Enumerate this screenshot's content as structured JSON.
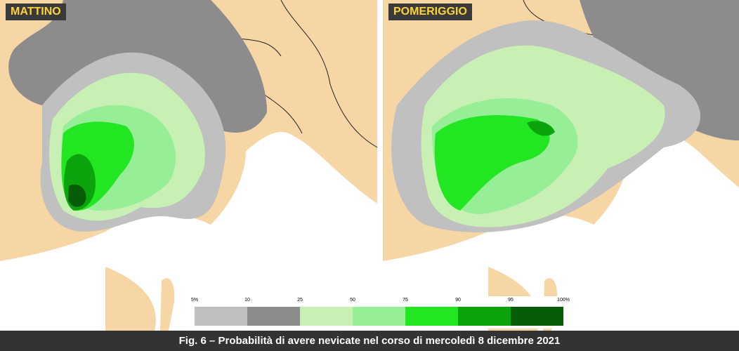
{
  "panels": [
    {
      "label": "MATTINO"
    },
    {
      "label": "POMERIGGIO"
    }
  ],
  "legend": {
    "ticks": [
      "5%",
      "10",
      "25",
      "50",
      "75",
      "90",
      "95",
      "100%"
    ],
    "colors": [
      "#c0c0c0",
      "#8c8c8c",
      "#c8f0b4",
      "#96ee96",
      "#22e622",
      "#0ca40c",
      "#075d07"
    ]
  },
  "caption": "Fig. 6 – Probabilità di avere nevicate nel corso di mercoledì 8 dicembre 2021"
}
